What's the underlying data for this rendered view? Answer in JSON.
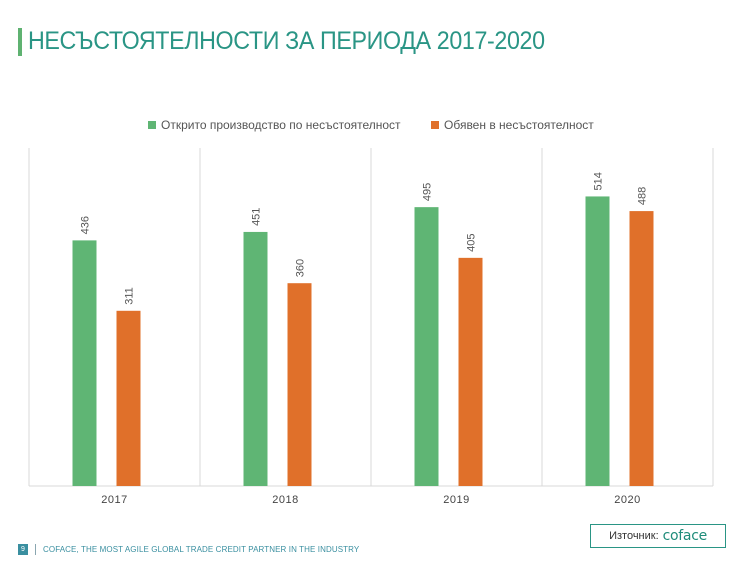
{
  "page": {
    "title": "НЕСЪСТОЯТЕЛНОСТИ ЗА ПЕРИОДА 2017-2020",
    "page_number": "9",
    "footer_text": "COFACE, THE MOST AGILE GLOBAL TRADE CREDIT PARTNER IN THE INDUSTRY",
    "source_label": "Източник:",
    "source_logo": "coface"
  },
  "colors": {
    "title": "#2a9585",
    "series_green": "#5fb574",
    "series_orange": "#e0702a",
    "grid": "#d9d9d9"
  },
  "chart_data": {
    "type": "bar",
    "title": "",
    "categories": [
      "2017",
      "2018",
      "2019",
      "2020"
    ],
    "series": [
      {
        "name": "Открито производство по несъстоятелност",
        "values": [
          436,
          451,
          495,
          514
        ],
        "color": "#5fb574"
      },
      {
        "name": "Обявен в несъстоятелност",
        "values": [
          311,
          360,
          405,
          488
        ],
        "color": "#e0702a"
      }
    ],
    "xlabel": "",
    "ylabel": "",
    "ylim": [
      0,
      600
    ],
    "grid": "vertical category separators",
    "legend_position": "top-center",
    "data_labels": "rotated, above bars"
  }
}
